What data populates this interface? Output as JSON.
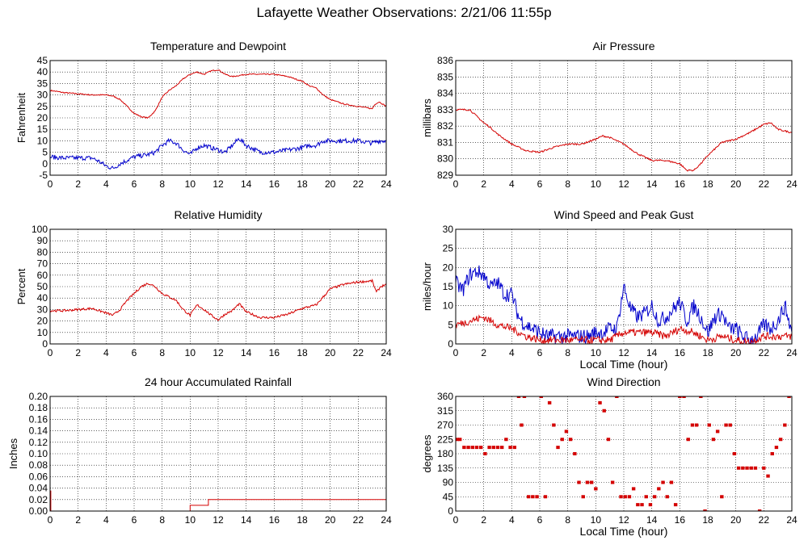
{
  "title": "Lafayette Weather Observations: 2/21/06 11:55p",
  "colors": {
    "red": "#d40000",
    "blue": "#0000cc",
    "grid": "#000000",
    "frame": "#000000"
  },
  "chart_data": [
    {
      "id": "temp",
      "type": "line",
      "title": "Temperature and Dewpoint",
      "xlabel": "",
      "ylabel": "Fahrenheit",
      "xlim": [
        0,
        24
      ],
      "ylim": [
        -5,
        45
      ],
      "xticks": [
        0,
        2,
        4,
        6,
        8,
        10,
        12,
        14,
        16,
        18,
        20,
        22,
        24
      ],
      "yticks": [
        -5,
        0,
        5,
        10,
        15,
        20,
        25,
        30,
        35,
        40,
        45
      ],
      "grid": true,
      "series": [
        {
          "color": "#d40000",
          "noise": 0.25,
          "x": [
            0,
            1,
            2,
            3,
            4,
            4.5,
            5,
            5.5,
            6,
            6.5,
            7,
            7.5,
            8,
            8.5,
            9,
            9.5,
            10,
            10.5,
            11,
            11.5,
            12,
            12.5,
            13,
            13.5,
            14,
            15,
            16,
            17,
            18,
            18.5,
            19,
            19.5,
            20,
            21,
            22,
            23,
            23.2,
            23.5,
            24
          ],
          "y": [
            32,
            31,
            30.5,
            30,
            30,
            29.5,
            28,
            25,
            22,
            20.5,
            20,
            23,
            29,
            32,
            34,
            37,
            39,
            40,
            39,
            40.5,
            41,
            39,
            38,
            38.5,
            39,
            39,
            39,
            38,
            36,
            34,
            33,
            30,
            28,
            26,
            25,
            24,
            26,
            27,
            25
          ]
        },
        {
          "color": "#0000cc",
          "noise": 1.0,
          "x": [
            0,
            1,
            2,
            3,
            3.5,
            4,
            4.5,
            5,
            5.5,
            6,
            7,
            7.5,
            8,
            8.5,
            9,
            9.5,
            10,
            10.5,
            11,
            11.5,
            12,
            12.5,
            13,
            13.5,
            14,
            15,
            16,
            17,
            18,
            18.5,
            19,
            19.5,
            20,
            21,
            22,
            23,
            23.5,
            24
          ],
          "y": [
            3,
            2.5,
            2.5,
            2.5,
            1,
            -1,
            -2,
            0,
            1.5,
            3,
            4,
            5,
            8,
            10,
            9,
            6,
            4,
            7,
            8,
            7,
            6,
            5,
            8,
            11,
            8,
            5,
            5,
            6,
            7,
            8,
            8,
            10,
            10,
            10,
            10,
            9,
            10,
            10
          ]
        }
      ]
    },
    {
      "id": "pressure",
      "type": "line",
      "title": "Air Pressure",
      "xlabel": "",
      "ylabel": "millibars",
      "xlim": [
        0,
        24
      ],
      "ylim": [
        829,
        836
      ],
      "xticks": [
        0,
        2,
        4,
        6,
        8,
        10,
        12,
        14,
        16,
        18,
        20,
        22,
        24
      ],
      "yticks": [
        829,
        830,
        831,
        832,
        833,
        834,
        835,
        836
      ],
      "grid": true,
      "series": [
        {
          "color": "#d40000",
          "noise": 0.05,
          "x": [
            0,
            1,
            1.5,
            2,
            2.5,
            3,
            4,
            5,
            6,
            7,
            8,
            9,
            10,
            10.5,
            11,
            12,
            13,
            14,
            15,
            16,
            16.5,
            17,
            17.5,
            18,
            18.5,
            19,
            20,
            21,
            22,
            22.5,
            23,
            24
          ],
          "y": [
            833,
            833,
            832.6,
            832.2,
            831.9,
            831.5,
            830.9,
            830.5,
            830.4,
            830.7,
            830.9,
            830.9,
            831.2,
            831.4,
            831.3,
            830.9,
            830.3,
            829.9,
            829.9,
            829.7,
            829.3,
            829.3,
            829.7,
            830.2,
            830.6,
            831,
            831.2,
            831.6,
            832.1,
            832.2,
            831.8,
            831.6
          ]
        }
      ]
    },
    {
      "id": "humidity",
      "type": "line",
      "title": "Relative Humidity",
      "xlabel": "",
      "ylabel": "Percent",
      "xlim": [
        0,
        24
      ],
      "ylim": [
        0,
        100
      ],
      "xticks": [
        0,
        2,
        4,
        6,
        8,
        10,
        12,
        14,
        16,
        18,
        20,
        22,
        24
      ],
      "yticks": [
        0,
        10,
        20,
        30,
        40,
        50,
        60,
        70,
        80,
        90,
        100
      ],
      "grid": true,
      "series": [
        {
          "color": "#d40000",
          "noise": 1.0,
          "x": [
            0,
            1,
            2,
            3,
            4,
            4.5,
            5,
            5.5,
            6,
            6.5,
            7,
            7.5,
            8,
            9,
            9.5,
            10,
            10.5,
            11,
            11.5,
            12,
            12.5,
            13,
            13.5,
            14,
            15,
            16,
            17,
            18,
            19,
            20,
            21,
            22,
            23,
            23.3,
            23.6,
            24
          ],
          "y": [
            29,
            29,
            30,
            31,
            27,
            25,
            30,
            38,
            44,
            50,
            53,
            50,
            44,
            38,
            30,
            25,
            34,
            30,
            25,
            21,
            26,
            29,
            35,
            28,
            23,
            23,
            26,
            31,
            34,
            48,
            52,
            54,
            55,
            45,
            50,
            52
          ]
        }
      ]
    },
    {
      "id": "wind",
      "type": "line",
      "title": "Wind Speed and Peak Gust",
      "xlabel": "Local Time (hour)",
      "ylabel": "miles/hour",
      "xlim": [
        0,
        24
      ],
      "ylim": [
        0,
        30
      ],
      "xticks": [
        0,
        2,
        4,
        6,
        8,
        10,
        12,
        14,
        16,
        18,
        20,
        22,
        24
      ],
      "yticks": [
        0,
        5,
        10,
        15,
        20,
        25,
        30
      ],
      "grid": true,
      "series": [
        {
          "color": "#0000cc",
          "noise": 2.0,
          "floor": 0,
          "x": [
            0,
            0.5,
            1,
            1.5,
            2,
            2.5,
            3,
            3.5,
            4,
            4.5,
            5,
            5.5,
            6,
            6.5,
            7,
            7.5,
            8,
            8.5,
            9,
            9.5,
            10,
            10.5,
            11,
            11.5,
            12,
            12.5,
            13,
            13.5,
            14,
            14.5,
            15,
            15.5,
            16,
            16.5,
            17,
            17.5,
            18,
            18.5,
            19,
            19.5,
            20,
            20.5,
            21,
            21.5,
            22,
            22.5,
            23,
            23.5,
            24
          ],
          "y": [
            16,
            14,
            18,
            19,
            18,
            15,
            16,
            13,
            13,
            7,
            5,
            4,
            3,
            2,
            2,
            2,
            2,
            2,
            2,
            2,
            3,
            3,
            4,
            4,
            15,
            9,
            7,
            8,
            10,
            6,
            7,
            9,
            11,
            6,
            10,
            7,
            3,
            7,
            8,
            4,
            4,
            2,
            1,
            2,
            5,
            4,
            6,
            10,
            3
          ]
        },
        {
          "color": "#d40000",
          "noise": 1.0,
          "floor": 0,
          "x": [
            0,
            1,
            2,
            3,
            4,
            5,
            6,
            7,
            8,
            9,
            10,
            11,
            12,
            13,
            14,
            15,
            16,
            17,
            18,
            19,
            20,
            21,
            22,
            23,
            24
          ],
          "y": [
            5,
            6,
            7,
            5,
            4,
            2,
            1,
            1,
            1,
            1,
            1,
            1,
            3,
            3,
            3,
            2,
            4,
            3,
            1,
            2,
            1,
            0.5,
            2,
            2,
            2
          ]
        }
      ]
    },
    {
      "id": "rain",
      "type": "line",
      "title": "24 hour Accumulated Rainfall",
      "xlabel": "",
      "ylabel": "Inches",
      "xlim": [
        0,
        24
      ],
      "ylim": [
        0,
        0.2
      ],
      "xticks": [
        0,
        2,
        4,
        6,
        8,
        10,
        12,
        14,
        16,
        18,
        20,
        22,
        24
      ],
      "yticks": [
        0,
        0.02,
        0.04,
        0.06,
        0.08,
        0.1,
        0.12,
        0.14,
        0.16,
        0.18,
        0.2
      ],
      "ytick_labels": [
        "0.00",
        "0.02",
        "0.04",
        "0.06",
        "0.08",
        "0.10",
        "0.12",
        "0.14",
        "0.16",
        "0.18",
        "0.20"
      ],
      "grid": true,
      "series": [
        {
          "color": "#d40000",
          "x": [
            0,
            0.05,
            0.05,
            10,
            10,
            11.3,
            11.3,
            24
          ],
          "y": [
            0.035,
            0.035,
            0,
            0,
            0.01,
            0.01,
            0.02,
            0.02
          ]
        }
      ]
    },
    {
      "id": "direction",
      "type": "scatter",
      "title": "Wind Direction",
      "xlabel": "Local Time (hour)",
      "ylabel": "degrees",
      "xlim": [
        0,
        24
      ],
      "ylim": [
        0,
        360
      ],
      "xticks": [
        0,
        2,
        4,
        6,
        8,
        10,
        12,
        14,
        16,
        18,
        20,
        22,
        24
      ],
      "yticks": [
        0,
        45,
        90,
        135,
        180,
        225,
        270,
        315,
        360
      ],
      "grid": true,
      "series": [
        {
          "color": "#d40000",
          "x": [
            0.1,
            0.3,
            0.6,
            0.9,
            1.2,
            1.5,
            1.8,
            2.1,
            2.4,
            2.7,
            3.0,
            3.3,
            3.6,
            3.9,
            4.2,
            4.5,
            4.7,
            4.9,
            5.2,
            5.5,
            5.8,
            6.1,
            6.4,
            6.7,
            7.0,
            7.3,
            7.6,
            7.9,
            8.2,
            8.5,
            8.8,
            9.1,
            9.4,
            9.7,
            10.0,
            10.3,
            10.6,
            10.9,
            11.2,
            11.5,
            11.8,
            12.1,
            12.4,
            12.7,
            13.0,
            13.3,
            13.6,
            13.9,
            14.2,
            14.5,
            14.8,
            15.1,
            15.4,
            15.7,
            16.0,
            16.3,
            16.6,
            16.9,
            17.2,
            17.5,
            17.8,
            18.1,
            18.4,
            18.7,
            19.0,
            19.3,
            19.6,
            19.9,
            20.2,
            20.5,
            20.8,
            21.1,
            21.4,
            21.7,
            22.0,
            22.3,
            22.6,
            22.9,
            23.2,
            23.5,
            23.8
          ],
          "y": [
            225,
            225,
            200,
            200,
            200,
            200,
            200,
            180,
            200,
            200,
            200,
            200,
            225,
            200,
            200,
            360,
            270,
            360,
            45,
            45,
            45,
            360,
            45,
            340,
            270,
            200,
            225,
            250,
            225,
            180,
            90,
            45,
            90,
            90,
            70,
            340,
            315,
            225,
            90,
            360,
            45,
            45,
            45,
            70,
            20,
            20,
            45,
            20,
            45,
            70,
            90,
            45,
            90,
            20,
            360,
            360,
            225,
            270,
            270,
            360,
            0,
            270,
            225,
            250,
            45,
            270,
            270,
            180,
            135,
            135,
            135,
            135,
            135,
            0,
            135,
            110,
            180,
            200,
            225,
            270,
            360
          ]
        }
      ]
    }
  ]
}
